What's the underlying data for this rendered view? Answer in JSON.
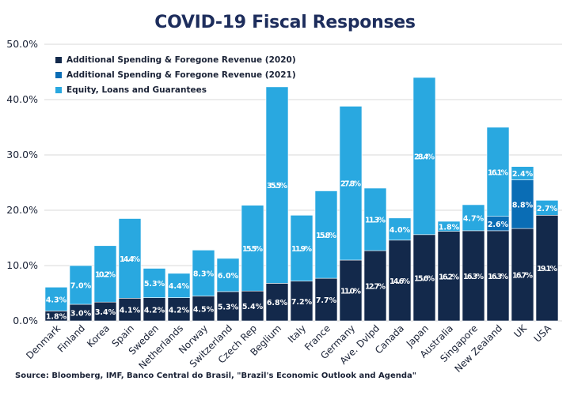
{
  "chart_data": {
    "type": "bar",
    "stacked": true,
    "title": "COVID-19 Fiscal Responses",
    "xlabel": "",
    "ylabel": "",
    "ylim": [
      0,
      50
    ],
    "yticks": [
      "0.0%",
      "10.0%",
      "20.0%",
      "30.0%",
      "40.0%",
      "50.0%"
    ],
    "ytick_values": [
      0,
      10,
      20,
      30,
      40,
      50
    ],
    "grid": true,
    "legend_position": "top-left",
    "categories": [
      "Denmark",
      "Finland",
      "Korea",
      "Spain",
      "Sweden",
      "Netherlands",
      "Norway",
      "Switzerland",
      "Czech Rep",
      "Beglium",
      "Italy",
      "France",
      "Germany",
      "Ave. Dvlpd",
      "Canada",
      "Japan",
      "Australia",
      "Singapore",
      "New Zealand",
      "UK",
      "USA"
    ],
    "series": [
      {
        "name": "Additional Spending & Foregone Revenue (2020)",
        "color": "#13294b",
        "values": [
          1.8,
          3.0,
          3.4,
          4.1,
          4.2,
          4.2,
          4.5,
          5.3,
          5.4,
          6.8,
          7.2,
          7.7,
          11.0,
          12.7,
          14.6,
          15.6,
          16.2,
          16.3,
          16.3,
          16.7,
          19.1
        ],
        "labels": [
          "1.8%",
          "3.0%",
          "3.4%",
          "4.1%",
          "4.2%",
          "4.2%",
          "4.5%",
          "5.3%",
          "5.4%",
          "6.8%",
          "7.2%",
          "7.7%",
          "11.0%",
          "12.7%",
          "14.6%",
          "15.6%",
          "16.2%",
          "16.3%",
          "16.3%",
          "16.7%",
          "19.1%"
        ]
      },
      {
        "name": "Additional Spending & Foregone Revenue (2021)",
        "color": "#0a6db5",
        "values": [
          0,
          0,
          0,
          0,
          0,
          0,
          0,
          0,
          0,
          0,
          0,
          0,
          0,
          0,
          0,
          0,
          0,
          0,
          2.6,
          8.8,
          0
        ],
        "labels": [
          "",
          "",
          "",
          "",
          "",
          "",
          "",
          "",
          "",
          "",
          "",
          "",
          "",
          "",
          "",
          "",
          "",
          "",
          "2.6%",
          "8.8%",
          ""
        ]
      },
      {
        "name": "Equity, Loans and Guarantees",
        "color": "#29a8e0",
        "values": [
          4.3,
          7.0,
          10.2,
          14.4,
          5.3,
          4.4,
          8.3,
          6.0,
          15.5,
          35.5,
          11.9,
          15.8,
          27.8,
          11.3,
          4.0,
          28.4,
          1.8,
          4.7,
          16.1,
          2.4,
          2.7
        ],
        "labels": [
          "4.3%",
          "7.0%",
          "10.2%",
          "14.4%",
          "5.3%",
          "4.4%",
          "8.3%",
          "6.0%",
          "15.5%",
          "35.5%",
          "11.9%",
          "15.8%",
          "27.8%",
          "11.3%",
          "4.0%",
          "28.4%",
          "1.8%",
          "4.7%",
          "16.1%",
          "2.4%",
          "2.7%"
        ]
      }
    ],
    "source": "Source: Bloomberg, IMF, Banco Central do Brasil, \"Brazil's Economic Outlook and Agenda\""
  }
}
